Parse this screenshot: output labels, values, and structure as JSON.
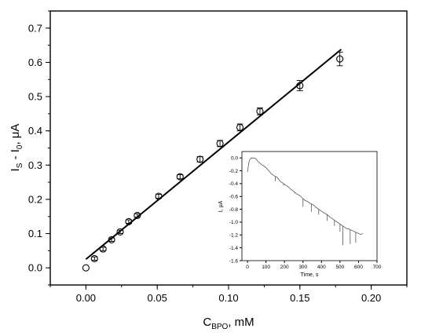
{
  "chart_data": [
    {
      "type": "scatter",
      "xlabel": {
        "main": "C",
        "sub": "BPO",
        "rest": ", mM"
      },
      "ylabel": {
        "p1": "I",
        "s1": "S",
        "p2": " - I",
        "s2": "0",
        "p3": ", μA"
      },
      "xlim": [
        -0.025,
        0.225
      ],
      "ylim": [
        -0.05,
        0.75
      ],
      "xticks": [
        0.0,
        0.05,
        0.1,
        0.15,
        0.2
      ],
      "xtick_labels": [
        "0.00",
        "0.05",
        "0.10",
        "0.15",
        "0.20"
      ],
      "yticks": [
        0.0,
        0.1,
        0.2,
        0.3,
        0.4,
        0.5,
        0.6,
        0.7
      ],
      "ytick_labels": [
        "0.0",
        "0.1",
        "0.2",
        "0.3",
        "0.4",
        "0.5",
        "0.6",
        "0.7"
      ],
      "series": [
        {
          "x": [
            0.0,
            0.006,
            0.012,
            0.018,
            0.024,
            0.03,
            0.036,
            0.051,
            0.066,
            0.08,
            0.094,
            0.108,
            0.122,
            0.15,
            0.178
          ],
          "y": [
            0.0,
            0.027,
            0.055,
            0.082,
            0.105,
            0.135,
            0.153,
            0.209,
            0.266,
            0.317,
            0.363,
            0.41,
            0.457,
            0.532,
            0.61
          ],
          "err": [
            0,
            0.005,
            0.005,
            0.005,
            0.005,
            0.005,
            0.005,
            0.006,
            0.006,
            0.008,
            0.009,
            0.01,
            0.01,
            0.015,
            0.02
          ]
        }
      ],
      "fit_line": {
        "x": [
          0.0,
          0.179
        ],
        "y": [
          0.025,
          0.638
        ]
      }
    },
    {
      "type": "line",
      "xlabel": "Time, s",
      "ylabel": "I, μA",
      "xlim": [
        -30,
        700
      ],
      "ylim": [
        -1.6,
        0.1
      ],
      "xticks": [
        0,
        100,
        200,
        300,
        400,
        500,
        600,
        700
      ],
      "xtick_labels": [
        "0",
        "100",
        "200",
        "300",
        "400",
        "500",
        "600",
        "700"
      ],
      "yticks": [
        0.0,
        -0.2,
        -0.4,
        -0.6,
        -0.8,
        -1.0,
        -1.2,
        -1.4,
        -1.6
      ],
      "ytick_labels": [
        "0.0",
        "-0.2",
        "-0.4",
        "-0.6",
        "-0.8",
        "-1.0",
        "-1.2",
        "-1.4",
        "-1.6"
      ],
      "trace": {
        "time": [
          0,
          5,
          10,
          20,
          30,
          45,
          55,
          70,
          85,
          100,
          115,
          130,
          145,
          160,
          175,
          190,
          205,
          220,
          235,
          250,
          265,
          280,
          295,
          310,
          325,
          340,
          355,
          370,
          385,
          400,
          415,
          430,
          445,
          460,
          475,
          490,
          505,
          520,
          535,
          550,
          565,
          580,
          595,
          610,
          625
        ],
        "current": [
          -0.22,
          -0.12,
          -0.04,
          0.0,
          0.0,
          -0.01,
          -0.05,
          -0.09,
          -0.12,
          -0.15,
          -0.2,
          -0.25,
          -0.28,
          -0.3,
          -0.36,
          -0.39,
          -0.42,
          -0.45,
          -0.49,
          -0.52,
          -0.56,
          -0.58,
          -0.62,
          -0.66,
          -0.68,
          -0.71,
          -0.73,
          -0.77,
          -0.8,
          -0.83,
          -0.86,
          -0.88,
          -0.92,
          -0.95,
          -0.98,
          -1.01,
          -1.04,
          -1.07,
          -1.1,
          -1.11,
          -1.13,
          -1.15,
          -1.17,
          -1.19,
          -1.18
        ]
      },
      "spikes": [
        {
          "t": 150,
          "depth": -0.36
        },
        {
          "t": 195,
          "depth": -0.43
        },
        {
          "t": 255,
          "depth": -0.55
        },
        {
          "t": 300,
          "depth": -0.76
        },
        {
          "t": 345,
          "depth": -0.84
        },
        {
          "t": 385,
          "depth": -0.88
        },
        {
          "t": 430,
          "depth": -0.98
        },
        {
          "t": 470,
          "depth": -1.06
        },
        {
          "t": 500,
          "depth": -1.15
        },
        {
          "t": 515,
          "depth": -1.36
        },
        {
          "t": 555,
          "depth": -1.34
        },
        {
          "t": 585,
          "depth": -1.32
        }
      ]
    }
  ]
}
